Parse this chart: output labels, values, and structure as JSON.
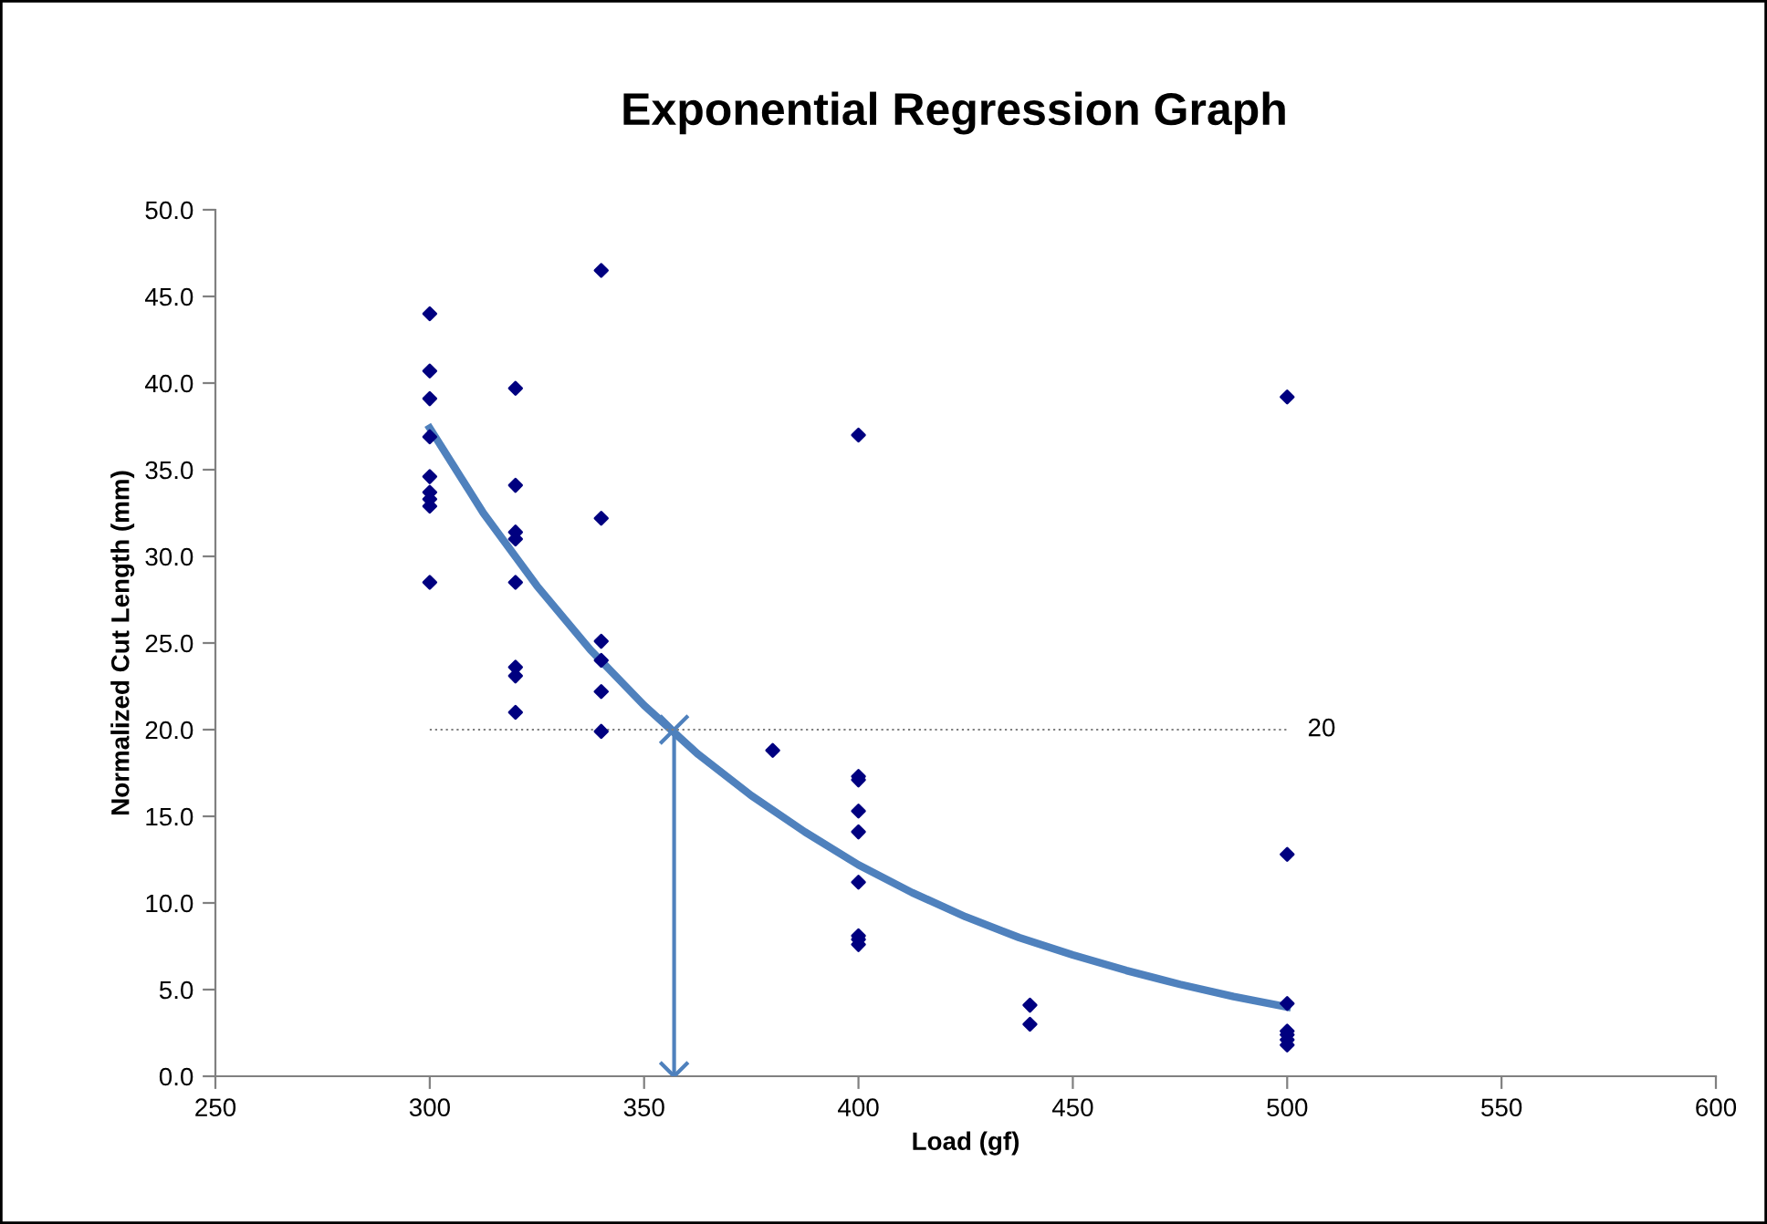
{
  "chart_data": {
    "type": "scatter",
    "title": "Exponential Regression Graph",
    "xlabel": "Load (gf)",
    "ylabel": "Normalized Cut Length (mm)",
    "xlim": [
      250,
      600
    ],
    "xticks": [
      250,
      300,
      350,
      400,
      450,
      500,
      550,
      600
    ],
    "ylim": [
      0,
      50
    ],
    "yticks": [
      {
        "value": 0,
        "label": "0.0"
      },
      {
        "value": 5,
        "label": "5.0"
      },
      {
        "value": 10,
        "label": "10.0"
      },
      {
        "value": 15,
        "label": "15.0"
      },
      {
        "value": 20,
        "label": "20.0"
      },
      {
        "value": 25,
        "label": "25.0"
      },
      {
        "value": 30,
        "label": "30.0"
      },
      {
        "value": 35,
        "label": "35.0"
      },
      {
        "value": 40,
        "label": "40.0"
      },
      {
        "value": 45,
        "label": "45.0"
      },
      {
        "value": 50,
        "label": "50.0"
      }
    ],
    "grid": false,
    "legend": false,
    "series": [
      {
        "marker": "diamond",
        "color": "#000080",
        "x": [
          300,
          300,
          300,
          300,
          300,
          300,
          300,
          300,
          300,
          320,
          320,
          320,
          320,
          320,
          320,
          320,
          320,
          340,
          340,
          340,
          340,
          340,
          340,
          380,
          400,
          400,
          400,
          400,
          400,
          400,
          400,
          400,
          400,
          440,
          440,
          500,
          500,
          500,
          500,
          500,
          500,
          500
        ],
        "values": [
          44.0,
          40.7,
          39.1,
          36.9,
          34.6,
          33.7,
          33.3,
          32.9,
          28.5,
          39.7,
          34.1,
          31.4,
          31.0,
          28.5,
          23.6,
          23.1,
          21.0,
          46.5,
          32.2,
          25.1,
          24.0,
          22.2,
          19.9,
          18.8,
          37.0,
          17.3,
          17.1,
          15.3,
          14.1,
          11.2,
          8.1,
          7.9,
          7.6,
          4.1,
          3.0,
          39.2,
          12.8,
          4.2,
          2.6,
          2.4,
          2.1,
          1.8
        ]
      },
      {
        "type": "line",
        "marker": "none",
        "line_style": "solid",
        "color": "#4f81bd",
        "x": [
          300,
          312.5,
          325,
          337.5,
          350,
          362.5,
          375,
          387.5,
          400,
          412.5,
          425,
          437.5,
          450,
          462.5,
          475,
          487.5,
          500
        ],
        "values": [
          37.4,
          32.5,
          28.3,
          24.6,
          21.4,
          18.6,
          16.2,
          14.1,
          12.2,
          10.6,
          9.2,
          8.0,
          7.0,
          6.1,
          5.3,
          4.6,
          4.0
        ]
      },
      {
        "type": "line",
        "marker": "cross",
        "line_style": "solid",
        "color": "#4f81bd",
        "x": [
          357,
          357
        ],
        "values": [
          20,
          0
        ]
      },
      {
        "type": "line",
        "marker": "none",
        "line_style": "dotted",
        "color": "#7f7f7f",
        "x": [
          300,
          500
        ],
        "values": [
          20,
          20
        ]
      }
    ],
    "annotations": [
      {
        "text": "20",
        "x": 500,
        "y": 20
      }
    ]
  }
}
